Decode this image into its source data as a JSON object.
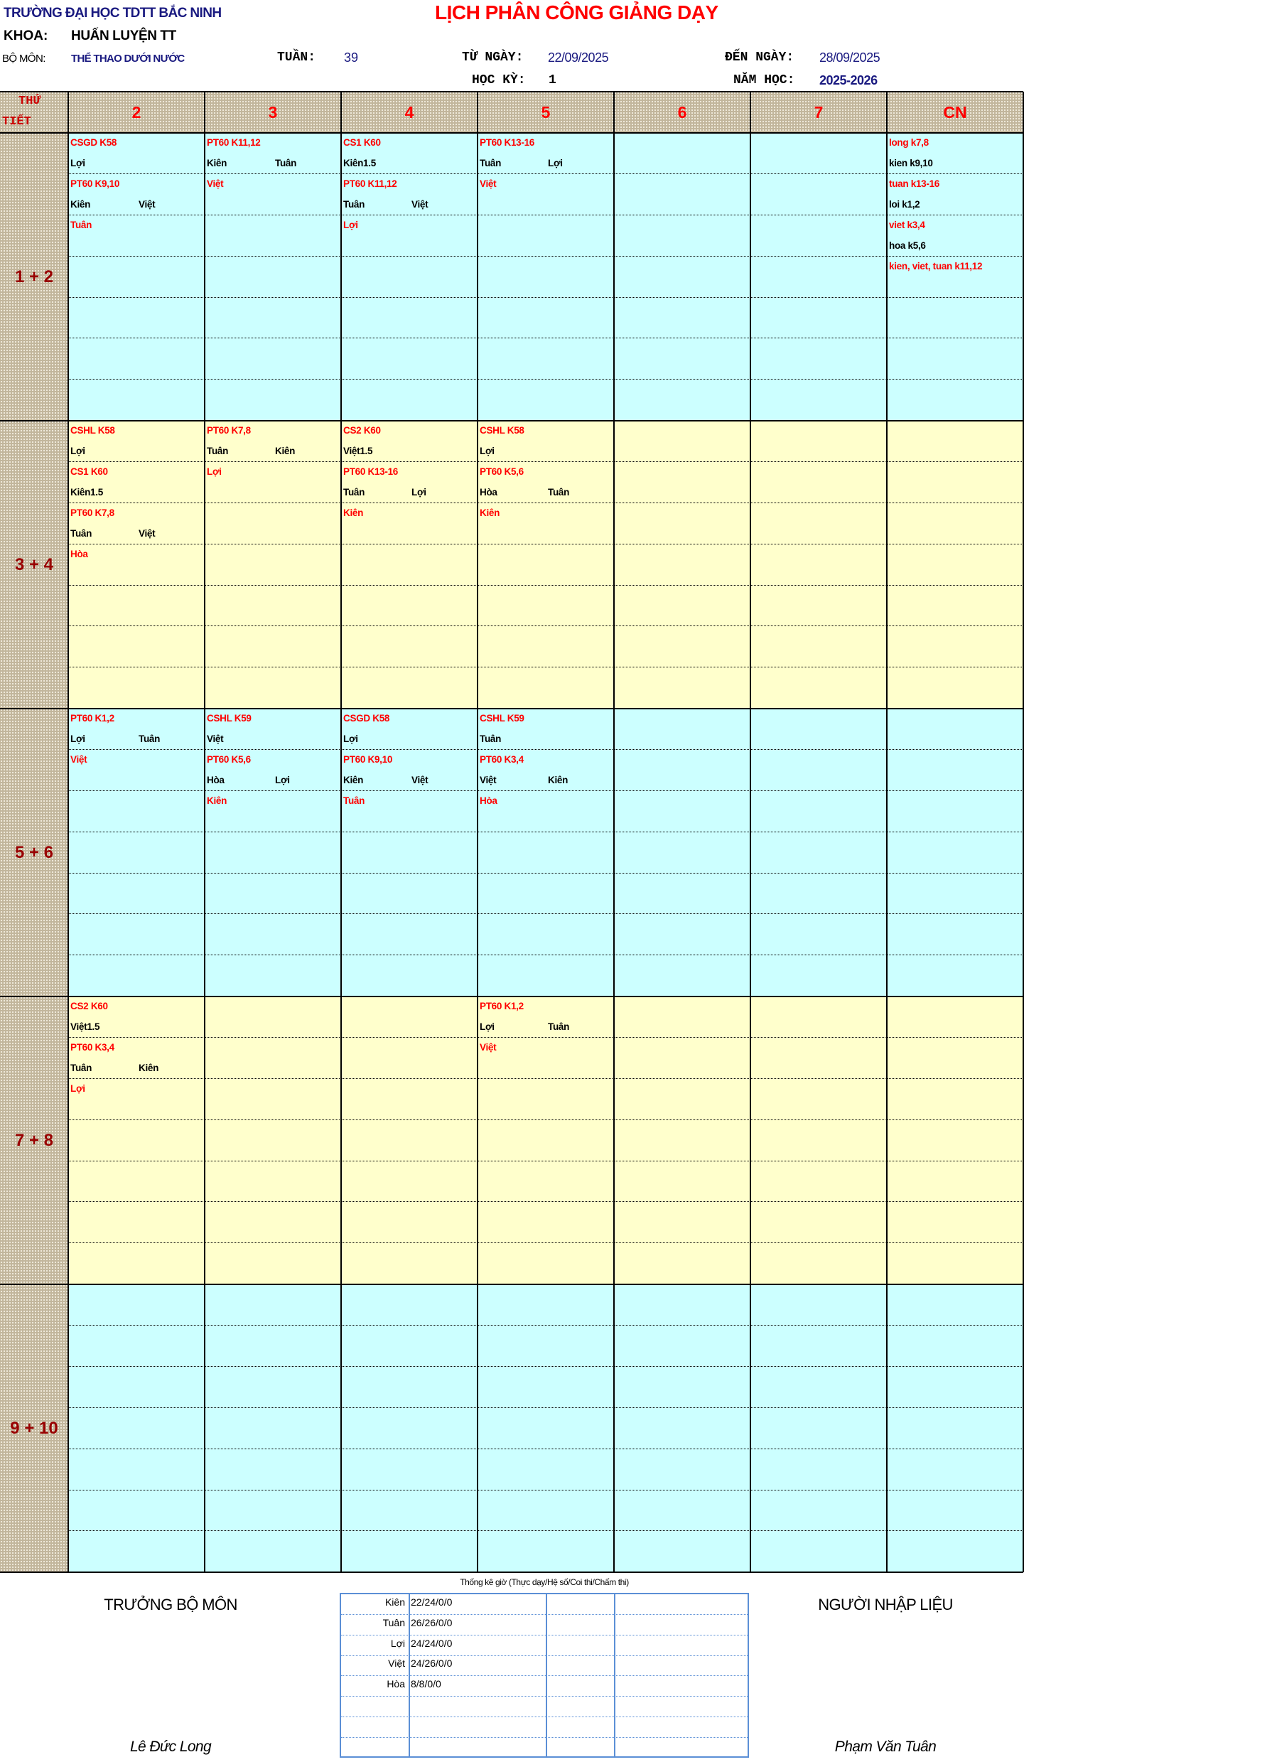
{
  "header": {
    "school": "TRƯỜNG ĐẠI HỌC TDTT BẮC NINH",
    "title": "LỊCH PHÂN CÔNG GIẢNG DẠY",
    "faculty_label": "KHOA:",
    "faculty": "HUẤN LUYỆN TT",
    "dept_label": "BỘ MÔN:",
    "dept": "THỂ THAO DƯỚI NƯỚC",
    "week_label": "TUẦN:",
    "week": "39",
    "from_label": "TỪ NGÀY:",
    "from_date": "22/09/2025",
    "to_label": "ĐẾN NGÀY:",
    "to_date": "28/09/2025",
    "semester_label": "HỌC KỲ:",
    "semester": "1",
    "year_label": "NĂM HỌC:",
    "year": "2025-2026"
  },
  "colors": {
    "cyan": "#CCFFFF",
    "yellow": "#FFFFCC",
    "header_red": "#FF0000",
    "period_red": "#990000",
    "navy": "#1A1A80"
  },
  "table": {
    "corner_top": "THỨ",
    "corner_bottom": "TIẾT",
    "days": [
      "2",
      "3",
      "4",
      "5",
      "6",
      "7",
      "CN"
    ],
    "blocks": [
      {
        "period": "1 + 2",
        "color": "cyan",
        "cells": [
          [
            {
              "r": "CSGD K58",
              "b1": "Lợi"
            },
            {
              "r": "PT60 K9,10",
              "b1": "Kiên",
              "b2": "Việt"
            },
            {
              "r": "Tuân"
            }
          ],
          [
            {
              "r": "PT60 K11,12",
              "b1": "Kiên",
              "b2": "Tuân"
            },
            {
              "r": "Việt"
            }
          ],
          [
            {
              "r": "CS1 K60",
              "b1": "Kiên1.5"
            },
            {
              "r": "PT60 K11,12",
              "b1": "Tuân",
              "b2": "Việt"
            },
            {
              "r": "Lợi"
            }
          ],
          [
            {
              "r": "PT60 K13-16",
              "b1": "Tuân",
              "b2": "Lợi"
            },
            {
              "r": "Việt"
            }
          ],
          [],
          [],
          [
            {
              "r": "long k7,8",
              "b1": "kien k9,10"
            },
            {
              "r": "tuan k13-16",
              "b1": "loi k1,2"
            },
            {
              "r": "viet k3,4",
              "b1": "hoa k5,6"
            },
            {
              "r": "kien, viet, tuan k11,12"
            }
          ]
        ]
      },
      {
        "period": "3 + 4",
        "color": "yellow",
        "cells": [
          [
            {
              "r": "CSHL K58",
              "b1": "Lợi"
            },
            {
              "r": "CS1 K60",
              "b1": "Kiên1.5"
            },
            {
              "r": "PT60 K7,8",
              "b1": "Tuân",
              "b2": "Việt"
            },
            {
              "r": "Hòa"
            }
          ],
          [
            {
              "r": "PT60 K7,8",
              "b1": "Tuân",
              "b2": "Kiên"
            },
            {
              "r": "Lợi"
            }
          ],
          [
            {
              "r": "CS2 K60",
              "b1": "Việt1.5"
            },
            {
              "r": "PT60 K13-16",
              "b1": "Tuân",
              "b2": "Lợi"
            },
            {
              "r": "Kiên"
            }
          ],
          [
            {
              "r": "CSHL K58",
              "b1": "Lợi"
            },
            {
              "r": "PT60 K5,6",
              "b1": "Hòa",
              "b2": "Tuân"
            },
            {
              "r": "Kiên"
            }
          ],
          [],
          [],
          []
        ]
      },
      {
        "period": "5 + 6",
        "color": "cyan",
        "cells": [
          [
            {
              "r": "PT60 K1,2",
              "b1": "Lợi",
              "b2": "Tuân"
            },
            {
              "r": "Việt"
            }
          ],
          [
            {
              "r": "CSHL K59",
              "b1": "Việt"
            },
            {
              "r": "PT60 K5,6",
              "b1": "Hòa",
              "b2": "Lợi"
            },
            {
              "r": "Kiên"
            }
          ],
          [
            {
              "r": "CSGD K58",
              "b1": "Lợi"
            },
            {
              "r": "PT60 K9,10",
              "b1": "Kiên",
              "b2": "Việt"
            },
            {
              "r": "Tuân"
            }
          ],
          [
            {
              "r": "CSHL K59",
              "b1": "Tuân"
            },
            {
              "r": "PT60 K3,4",
              "b1": "Việt",
              "b2": "Kiên"
            },
            {
              "r": "Hòa"
            }
          ],
          [],
          [],
          []
        ]
      },
      {
        "period": "7 + 8",
        "color": "yellow",
        "cells": [
          [
            {
              "r": "CS2 K60",
              "b1": "Việt1.5"
            },
            {
              "r": "PT60 K3,4",
              "b1": "Tuân",
              "b2": "Kiên"
            },
            {
              "r": "Lợi"
            }
          ],
          [],
          [],
          [
            {
              "r": "PT60 K1,2",
              "b1": "Lợi",
              "b2": "Tuân"
            },
            {
              "r": "Việt"
            }
          ],
          [],
          [],
          []
        ]
      },
      {
        "period": "9 + 10",
        "color": "cyan",
        "cells": [
          [],
          [],
          [],
          [],
          [],
          [],
          []
        ]
      }
    ]
  },
  "stats": {
    "title": "Thống kê giờ (Thực dạy/Hệ số/Coi thi/Chấm thi)",
    "rows": [
      {
        "name": "Kiên",
        "value": "22/24/0/0"
      },
      {
        "name": "Tuân",
        "value": "26/26/0/0"
      },
      {
        "name": "Lợi",
        "value": "24/24/0/0"
      },
      {
        "name": "Việt",
        "value": "24/26/0/0"
      },
      {
        "name": "Hòa",
        "value": "8/8/0/0"
      },
      {
        "name": "",
        "value": ""
      },
      {
        "name": "",
        "value": ""
      },
      {
        "name": "",
        "value": ""
      }
    ]
  },
  "signatures": {
    "left_title": "TRƯỞNG BỘ MÔN",
    "left_name": "Lê Đức Long",
    "right_title": "NGƯỜI NHẬP LIỆU",
    "right_name": "Phạm Văn Tuân"
  }
}
